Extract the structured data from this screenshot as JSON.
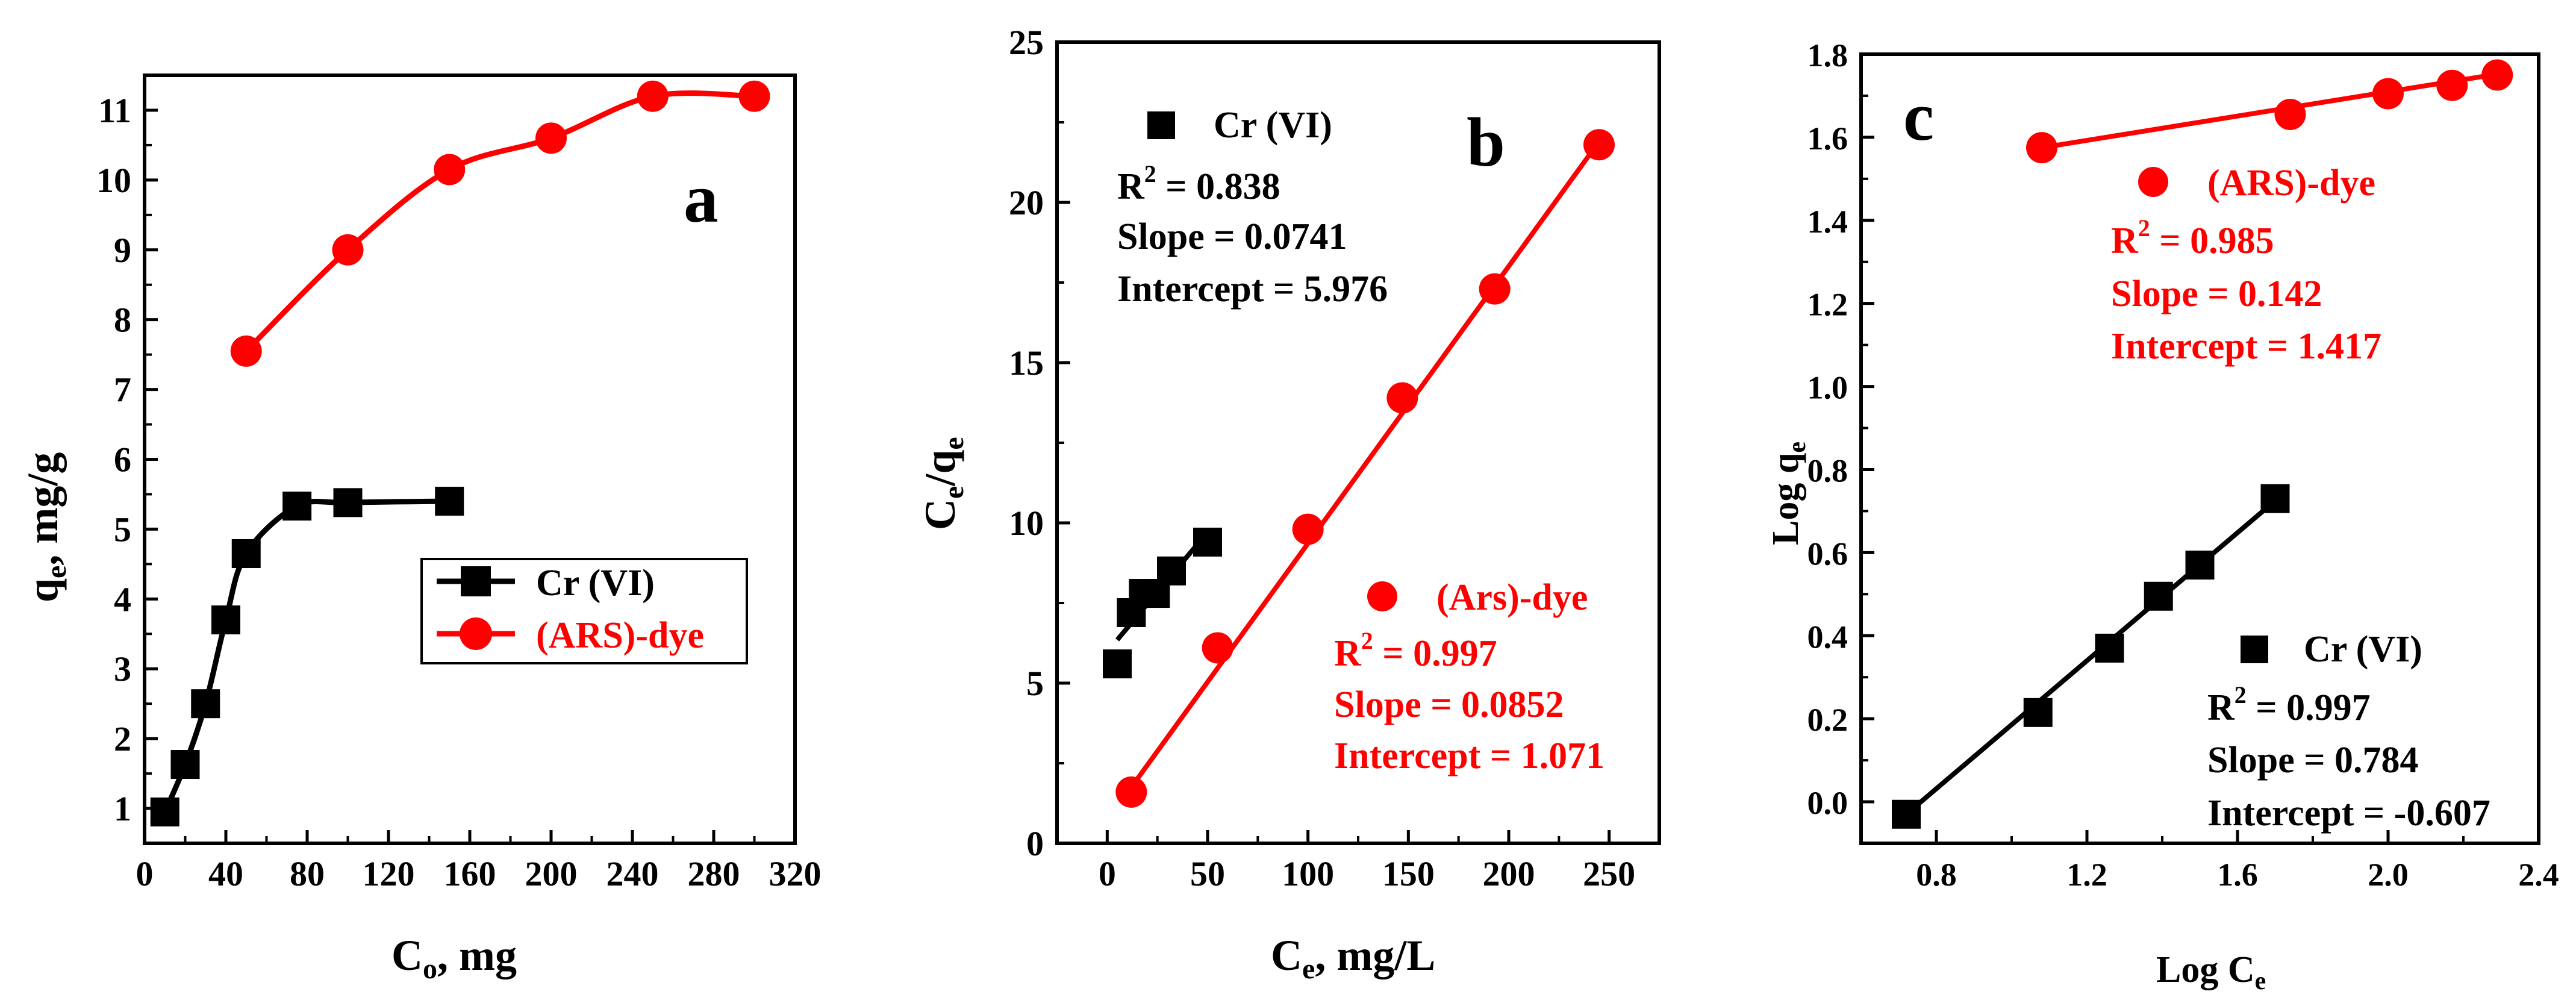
{
  "figure": {
    "panels": [
      "a",
      "b",
      "c"
    ]
  },
  "colors": {
    "black": "#000000",
    "red": "#ff0000"
  },
  "chart_data": [
    {
      "type": "line",
      "panel_label": "a",
      "title": "",
      "xlabel": "C",
      "xlabel_sub": "o",
      "xlabel_tail": ", mg",
      "ylabel": "q",
      "ylabel_sub": "e",
      "ylabel_tail": ", mg/g",
      "xlim": [
        0,
        320
      ],
      "ylim": [
        0.5,
        11.5
      ],
      "xticks": [
        0,
        40,
        80,
        120,
        160,
        200,
        240,
        280,
        320
      ],
      "yticks": [
        1,
        2,
        3,
        4,
        5,
        6,
        7,
        8,
        9,
        10,
        11
      ],
      "legend": {
        "placement": "center-right",
        "entries": [
          "Cr (VI)",
          "(ARS)-dye"
        ]
      },
      "series": [
        {
          "name": "Cr (VI)",
          "marker": "square",
          "color": "#000000",
          "x": [
            10,
            20,
            30,
            40,
            50,
            75,
            100,
            150
          ],
          "y": [
            0.95,
            1.63,
            2.5,
            3.7,
            4.65,
            5.33,
            5.38,
            5.4
          ]
        },
        {
          "name": "(ARS)-dye",
          "marker": "circle",
          "color": "#ff0000",
          "x": [
            50,
            100,
            150,
            200,
            250,
            300
          ],
          "y": [
            7.55,
            9.0,
            10.15,
            10.6,
            11.2,
            11.2
          ]
        }
      ],
      "annotations": []
    },
    {
      "type": "scatter",
      "panel_label": "b",
      "title": "",
      "xlabel": "C",
      "xlabel_sub": "e",
      "xlabel_tail": ", mg/L",
      "ylabel": "C",
      "ylabel_sub": "e",
      "ylabel_mid": "/q",
      "ylabel_sub2": "e",
      "xlim": [
        -25,
        275
      ],
      "ylim": [
        0,
        25
      ],
      "xticks": [
        0,
        50,
        100,
        150,
        200,
        250
      ],
      "yticks": [
        0,
        5,
        10,
        15,
        20,
        25
      ],
      "series": [
        {
          "name": "Cr (VI)",
          "marker": "square",
          "color": "#000000",
          "x": [
            5,
            12,
            18,
            24,
            32,
            50
          ],
          "y": [
            5.6,
            7.2,
            7.8,
            7.8,
            8.5,
            9.4
          ],
          "fit": {
            "x": [
              5,
              50
            ],
            "y": [
              6.35,
              9.71
            ]
          }
        },
        {
          "name": "(Ars)-dye",
          "marker": "circle",
          "color": "#ff0000",
          "x": [
            12,
            55,
            100,
            147,
            193,
            245
          ],
          "y": [
            1.6,
            6.1,
            9.8,
            13.9,
            17.3,
            21.8
          ],
          "fit": {
            "x": [
              12,
              245
            ],
            "y": [
              1.75,
              21.9
            ]
          }
        }
      ],
      "annotations": [
        {
          "legend_label": "Cr (VI)",
          "r2_label": "R",
          "r2_sup": "2",
          "r2_value": " = 0.838",
          "slope": "Slope = 0.0741",
          "intercept": "Intercept = 5.976"
        },
        {
          "legend_label": "(Ars)-dye",
          "r2_label": "R",
          "r2_sup": "2",
          "r2_value": " = 0.997",
          "slope": "Slope = 0.0852",
          "intercept": "Intercept = 1.071"
        }
      ]
    },
    {
      "type": "scatter",
      "panel_label": "c",
      "title": "",
      "xlabel": "Log C",
      "xlabel_sub": "e",
      "xlabel_tail": "",
      "ylabel": "Log q",
      "ylabel_sub": "e",
      "ylabel_tail": "",
      "xlim": [
        0.6,
        2.4
      ],
      "ylim": [
        -0.1,
        1.8
      ],
      "xticks": [
        "0.8",
        "1.2",
        "1.6",
        "2.0",
        "2.4"
      ],
      "yticks": [
        "0.0",
        "0.2",
        "0.4",
        "0.6",
        "0.8",
        "1.0",
        "1.2",
        "1.4",
        "1.6",
        "1.8"
      ],
      "series": [
        {
          "name": "(ARS)-dye",
          "marker": "circle",
          "color": "#ff0000",
          "x": [
            1.08,
            1.74,
            2.0,
            2.17,
            2.29
          ],
          "y": [
            1.575,
            1.655,
            1.705,
            1.725,
            1.75
          ],
          "fit": {
            "x": [
              1.08,
              2.29
            ],
            "y": [
              1.575,
              1.752
            ]
          }
        },
        {
          "name": "Cr (VI)",
          "marker": "square",
          "color": "#000000",
          "x": [
            0.72,
            1.07,
            1.26,
            1.39,
            1.5,
            1.7
          ],
          "y": [
            -0.03,
            0.215,
            0.37,
            0.495,
            0.57,
            0.73
          ],
          "fit": {
            "x": [
              0.72,
              1.7
            ],
            "y": [
              -0.03,
              0.725
            ]
          }
        }
      ],
      "annotations": [
        {
          "legend_label": "(ARS)-dye",
          "r2_label": "R",
          "r2_sup": "2",
          "r2_value": " = 0.985",
          "slope": "Slope = 0.142",
          "intercept": "Intercept = 1.417"
        },
        {
          "legend_label": "Cr (VI)",
          "r2_label": "R",
          "r2_sup": "2",
          "r2_value": " = 0.997",
          "slope": "Slope = 0.784",
          "intercept": "Intercept = -0.607"
        }
      ]
    }
  ]
}
